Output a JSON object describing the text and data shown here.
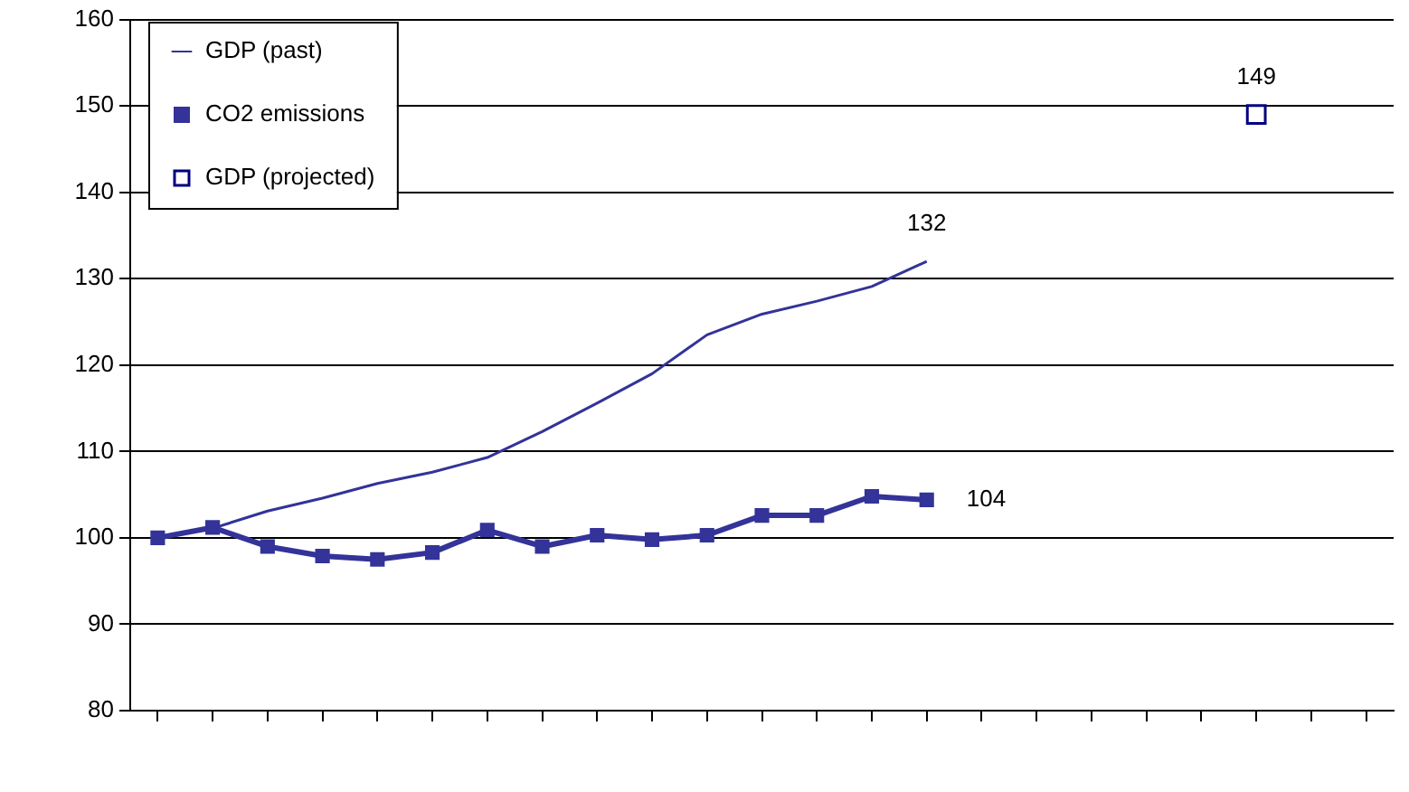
{
  "chart_data": {
    "type": "line",
    "categories": [
      null,
      null,
      null,
      null,
      null,
      null,
      null,
      null,
      null,
      null,
      null,
      null,
      null,
      null,
      null,
      null,
      null,
      null,
      null,
      null,
      null,
      null,
      null
    ],
    "series": [
      {
        "name": "GDP (past)",
        "color": "#333399",
        "marker": "none",
        "values": [
          100,
          101.1,
          103.1,
          104.6,
          106.3,
          107.6,
          109.3,
          112.3,
          115.6,
          119.0,
          123.5,
          125.9,
          127.4,
          129.1,
          132,
          null,
          null,
          null,
          null,
          null,
          null,
          null,
          null
        ],
        "value_labels": [
          null,
          null,
          null,
          null,
          null,
          null,
          null,
          null,
          null,
          null,
          null,
          null,
          null,
          null,
          "132",
          null,
          null,
          null,
          null,
          null,
          null,
          null,
          null
        ]
      },
      {
        "name": "CO2 emissions",
        "color": "#333399",
        "marker": "square",
        "values": [
          100,
          101.2,
          99.0,
          97.9,
          97.5,
          98.3,
          100.9,
          99.0,
          100.3,
          99.8,
          100.3,
          102.6,
          102.6,
          104.8,
          104.4,
          null,
          null,
          null,
          null,
          null,
          null,
          null,
          null
        ],
        "value_labels": [
          null,
          null,
          null,
          null,
          null,
          null,
          null,
          null,
          null,
          null,
          null,
          null,
          null,
          null,
          "104",
          null,
          null,
          null,
          null,
          null,
          null,
          null,
          null
        ]
      },
      {
        "name": "GDP (projected)",
        "type": "scatter",
        "color": "#000080",
        "marker": "square",
        "values": [
          null,
          null,
          null,
          null,
          null,
          null,
          null,
          null,
          null,
          null,
          null,
          null,
          null,
          null,
          null,
          null,
          null,
          null,
          null,
          null,
          149,
          null,
          null
        ],
        "value_labels": [
          null,
          null,
          null,
          null,
          null,
          null,
          null,
          null,
          null,
          null,
          null,
          null,
          null,
          null,
          null,
          null,
          null,
          null,
          null,
          null,
          "149",
          null,
          null
        ]
      }
    ],
    "ylim": [
      80,
      160
    ],
    "yticks": [
      80,
      90,
      100,
      110,
      120,
      130,
      140,
      150,
      160
    ],
    "grid": "y",
    "legend": "top left",
    "tick_labels": "y"
  }
}
